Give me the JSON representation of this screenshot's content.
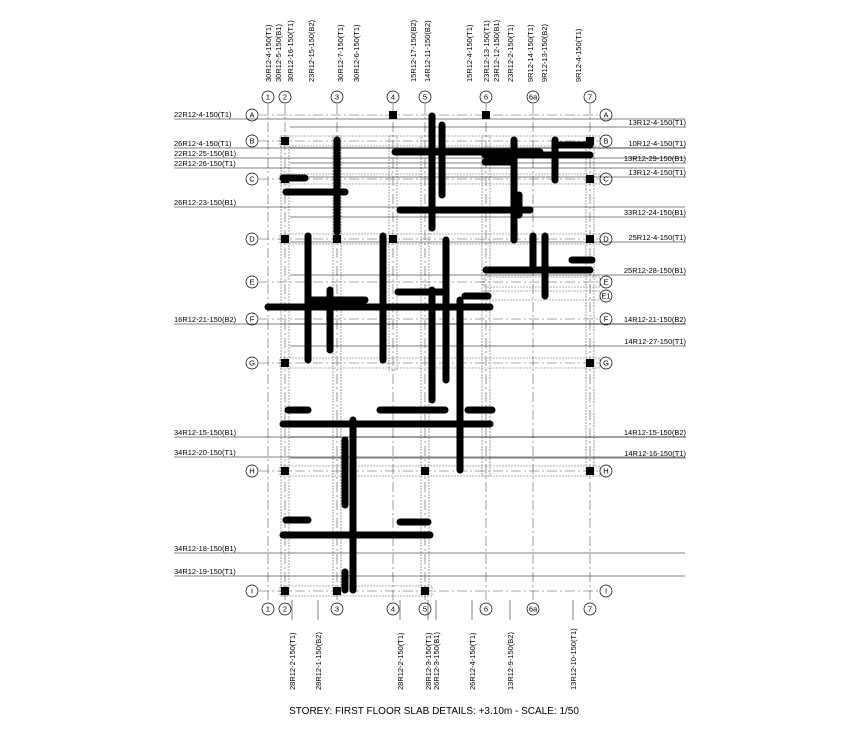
{
  "drawing": {
    "grid_columns": [
      "1",
      "2",
      "3",
      "4",
      "5",
      "6",
      "6a",
      "7"
    ],
    "grid_rows": [
      "A",
      "B",
      "C",
      "D",
      "E",
      "F",
      "G",
      "H",
      "I"
    ],
    "extra_row": "E1",
    "column_labels_top": [
      "30R12-4-150(T1)",
      "30R12-5-150(B1)",
      "30R12-16-150(T1)",
      "23R12-15-150(B2)",
      "30R12-7-150(T1)",
      "30R12-6-150(T1)",
      "15R12-17-150(B2)",
      "14R12-11-150(B2)",
      "15R12-4-150(T1)",
      "23R12-13-150(T1)",
      "23R12-12-150(B1)",
      "23R12-2-150(T1)",
      "9R12-14-150(T1)",
      "9R12-13-150(B2)",
      "9R12-4-150(T1)"
    ],
    "column_labels_bottom": [
      "28R12-2-150(T1)",
      "28R12-1-150(B2)",
      "28R12-2-150(T1)",
      "28R12-3-150(T1)",
      "26R12-3-150(B1)",
      "26R12-4-150(T1)",
      "13R12-9-150(B2)",
      "13R12-10-150(T1)"
    ],
    "row_labels_left": [
      "22R12-4-150(T1)",
      "26R12-4-150(T1)",
      "22R12-25-150(B1)",
      "22R12-26-150(T1)",
      "26R12-23-150(B1)",
      "16R12-21-150(B2)",
      "34R12-15-150(B1)",
      "34R12-20-150(T1)",
      "34R12-18-150(B1)",
      "34R12-19-150(T1)"
    ],
    "row_labels_right": [
      "13R12-4-150(T1)",
      "10R12-4-150(T1)",
      "13R12-29-150(B1)",
      "13R12-4-150(T1)",
      "33R12-24-150(B1)",
      "25R12-4-150(T1)",
      "25R12-28-150(B1)",
      "14R12-21-150(B2)",
      "14R12-27-150(T1)",
      "14R12-15-150(B2)",
      "14R12-16-150(T1)"
    ],
    "caption": "STOREY: FIRST FLOOR SLAB DETAILS: +3.10m - SCALE: 1/50"
  }
}
